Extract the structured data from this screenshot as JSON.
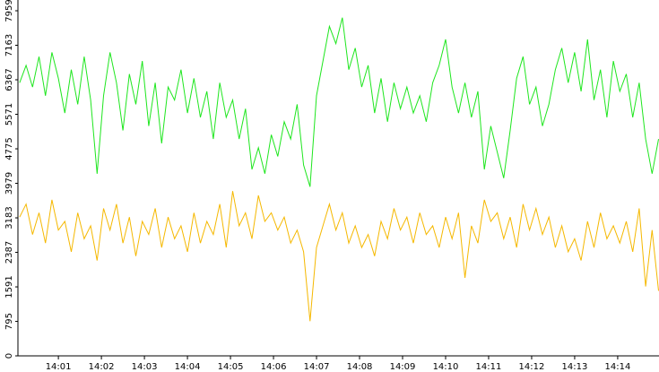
{
  "chart_data": {
    "type": "line",
    "x": [
      840.1,
      840.25,
      840.4,
      840.55,
      840.7,
      840.85,
      841,
      841.15,
      841.3,
      841.45,
      841.6,
      841.75,
      841.9,
      842.05,
      842.2,
      842.35,
      842.5,
      842.65,
      842.8,
      842.95,
      843.1,
      843.25,
      843.4,
      843.55,
      843.7,
      843.85,
      844,
      844.15,
      844.3,
      844.45,
      844.6,
      844.75,
      844.9,
      845.05,
      845.2,
      845.35,
      845.5,
      845.65,
      845.8,
      845.95,
      846.1,
      846.25,
      846.4,
      846.55,
      846.7,
      846.85,
      847,
      847.15,
      847.3,
      847.45,
      847.6,
      847.75,
      847.9,
      848.05,
      848.2,
      848.35,
      848.5,
      848.65,
      848.8,
      848.95,
      849.1,
      849.25,
      849.4,
      849.55,
      849.7,
      849.85,
      850,
      850.15,
      850.3,
      850.45,
      850.6,
      850.75,
      850.9,
      851.05,
      851.2,
      851.35,
      851.5,
      851.65,
      851.8,
      851.95,
      852.1,
      852.25,
      852.4,
      852.55,
      852.7,
      852.85,
      853,
      853.15,
      853.3,
      853.45,
      853.6,
      853.75,
      853.9,
      854.05,
      854.2,
      854.35,
      854.5,
      854.65,
      854.8,
      854.95
    ],
    "series": [
      {
        "color": "#1ee61e",
        "values": [
          6300,
          6700,
          6200,
          6900,
          6000,
          7000,
          6400,
          5600,
          6600,
          5800,
          6900,
          5900,
          4200,
          6000,
          7000,
          6300,
          5200,
          6500,
          5800,
          6800,
          5300,
          6300,
          4900,
          6200,
          5900,
          6600,
          5600,
          6400,
          5500,
          6100,
          5000,
          6300,
          5500,
          5900,
          5000,
          5700,
          4300,
          4800,
          4200,
          5100,
          4600,
          5400,
          5000,
          5800,
          4400,
          3900,
          6000,
          6800,
          7600,
          7200,
          7800,
          6600,
          7100,
          6200,
          6700,
          5600,
          6400,
          5400,
          6300,
          5700,
          6200,
          5600,
          6000,
          5400,
          6300,
          6700,
          7300,
          6200,
          5600,
          6300,
          5500,
          6100,
          4300,
          5300,
          4700,
          4100,
          5200,
          6400,
          6900,
          5800,
          6200,
          5300,
          5800,
          6600,
          7100,
          6300,
          7000,
          6100,
          7300,
          5900,
          6600,
          5500,
          6800,
          6100,
          6500,
          5500,
          6300,
          5000,
          4200,
          5000
        ]
      },
      {
        "color": "#f5b800",
        "values": [
          3200,
          3500,
          2800,
          3300,
          2600,
          3600,
          2900,
          3100,
          2400,
          3300,
          2700,
          3000,
          2200,
          3400,
          2900,
          3500,
          2600,
          3200,
          2300,
          3100,
          2800,
          3400,
          2500,
          3200,
          2700,
          3000,
          2400,
          3300,
          2600,
          3100,
          2800,
          3500,
          2500,
          3800,
          3000,
          3300,
          2700,
          3700,
          3100,
          3300,
          2900,
          3200,
          2600,
          2900,
          2400,
          800,
          2500,
          3000,
          3500,
          2900,
          3300,
          2600,
          3000,
          2500,
          2800,
          2300,
          3100,
          2700,
          3400,
          2900,
          3200,
          2600,
          3300,
          2800,
          3000,
          2500,
          3200,
          2700,
          3300,
          1800,
          3000,
          2600,
          3600,
          3100,
          3300,
          2700,
          3200,
          2500,
          3500,
          2900,
          3400,
          2800,
          3200,
          2500,
          3000,
          2400,
          2700,
          2200,
          3100,
          2500,
          3300,
          2700,
          3000,
          2600,
          3100,
          2400,
          3400,
          1600,
          2900,
          1500
        ]
      }
    ],
    "xlim": [
      840.06,
      854.96
    ],
    "xticks": [
      {
        "value": 841,
        "label": "14:01"
      },
      {
        "value": 842,
        "label": "14:02"
      },
      {
        "value": 843,
        "label": "14:03"
      },
      {
        "value": 844,
        "label": "14:04"
      },
      {
        "value": 845,
        "label": "14:05"
      },
      {
        "value": 846,
        "label": "14:06"
      },
      {
        "value": 847,
        "label": "14:07"
      },
      {
        "value": 848,
        "label": "14:08"
      },
      {
        "value": 849,
        "label": "14:09"
      },
      {
        "value": 850,
        "label": "14:10"
      },
      {
        "value": 851,
        "label": "14:11"
      },
      {
        "value": 852,
        "label": "14:12"
      },
      {
        "value": 853,
        "label": "14:13"
      },
      {
        "value": 854,
        "label": "14:14"
      }
    ],
    "ylim": [
      0,
      7959
    ],
    "yticks": [
      0,
      795,
      1591,
      2387,
      3183,
      3979,
      4775,
      5571,
      6367,
      7163,
      7959
    ]
  }
}
